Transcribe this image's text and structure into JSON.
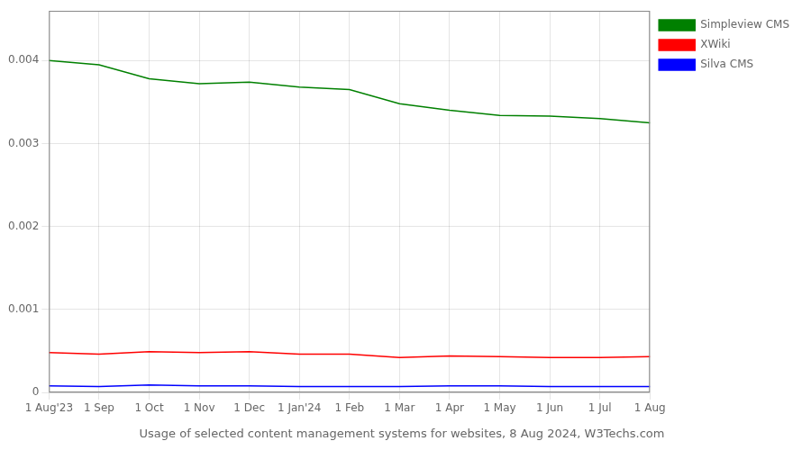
{
  "chart_data": {
    "type": "line",
    "title": "Usage of selected content management systems for websites, 8 Aug 2024, W3Techs.com",
    "categories": [
      "1 Aug'23",
      "1 Sep",
      "1 Oct",
      "1 Nov",
      "1 Dec",
      "1 Jan'24",
      "1 Feb",
      "1 Mar",
      "1 Apr",
      "1 May",
      "1 Jun",
      "1 Jul",
      "1 Aug"
    ],
    "series": [
      {
        "name": "Simpleview CMS",
        "color": "#008000",
        "values": [
          0.004,
          0.00395,
          0.00378,
          0.00372,
          0.00374,
          0.00368,
          0.00365,
          0.00348,
          0.0034,
          0.00334,
          0.00333,
          0.0033,
          0.00325
        ]
      },
      {
        "name": "XWiki",
        "color": "#ff0000",
        "values": [
          0.00048,
          0.00046,
          0.00049,
          0.00048,
          0.00049,
          0.00046,
          0.00046,
          0.00042,
          0.00044,
          0.00043,
          0.00042,
          0.00042,
          0.00043
        ]
      },
      {
        "name": "Silva CMS",
        "color": "#0000ff",
        "values": [
          8e-05,
          7e-05,
          9e-05,
          8e-05,
          8e-05,
          7e-05,
          7e-05,
          7e-05,
          8e-05,
          8e-05,
          7e-05,
          7e-05,
          7e-05
        ]
      }
    ],
    "ylim": [
      0,
      0.0046
    ],
    "yticks": [
      0,
      0.001,
      0.002,
      0.003,
      0.004
    ],
    "grid": true,
    "legend": "right"
  }
}
